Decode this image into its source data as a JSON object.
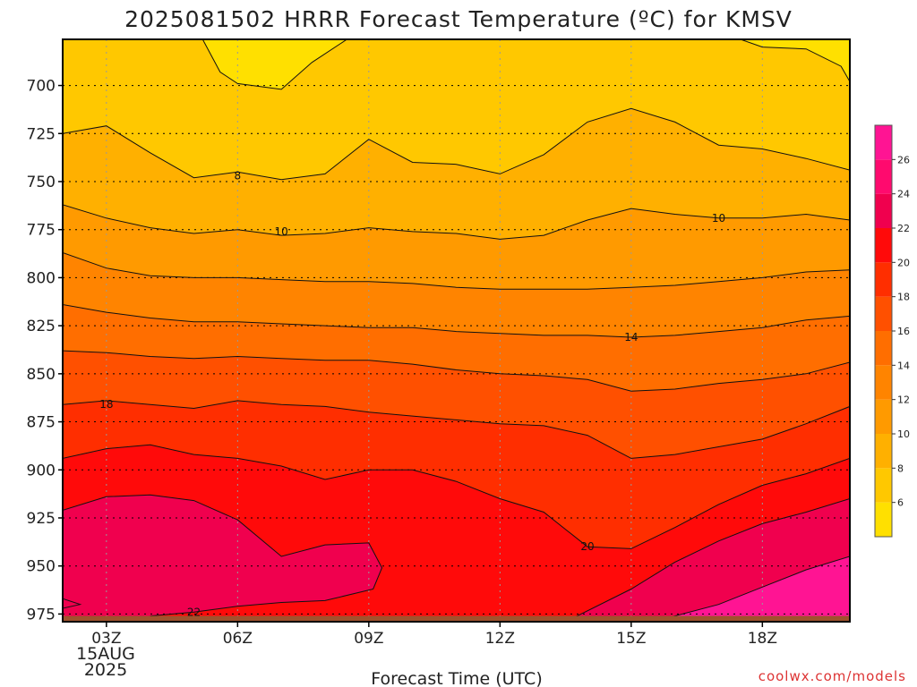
{
  "chart_data": {
    "type": "heatmap",
    "title": "2025081502 HRRR Forecast Temperature (ºC) for KMSV",
    "xlabel": "Forecast Time (UTC)",
    "x_ticks": [
      "03Z",
      "06Z",
      "09Z",
      "12Z",
      "15Z",
      "18Z"
    ],
    "x_date_line1": "15AUG",
    "x_date_line2": "2025",
    "x_range": [
      "02Z",
      "20Z"
    ],
    "y_ticks": [
      700,
      725,
      750,
      775,
      800,
      825,
      850,
      875,
      900,
      925,
      950,
      975
    ],
    "y_range": [
      676,
      979
    ],
    "y_reversed": true,
    "grid": true,
    "colorbar_ticks": [
      6,
      8,
      10,
      12,
      14,
      16,
      18,
      20,
      22,
      24,
      26
    ],
    "colorbar_range": [
      4,
      28
    ],
    "contour_labels": [
      "8",
      "10",
      "10",
      "14",
      "18",
      "20",
      "22"
    ],
    "band_colors": [
      "#ffe000",
      "#ffc800",
      "#ffb000",
      "#ff9a00",
      "#ff8400",
      "#ff6e00",
      "#ff5000",
      "#ff2e00",
      "#ff0a0a",
      "#f0004e",
      "#ff0a6e",
      "#ff1493"
    ],
    "contours": [
      {
        "level": 8,
        "points": [
          [
            2,
            725
          ],
          [
            3,
            721
          ],
          [
            4,
            735
          ],
          [
            5,
            748
          ],
          [
            6,
            745
          ],
          [
            7,
            749
          ],
          [
            8,
            746
          ],
          [
            9,
            728
          ],
          [
            10,
            740
          ],
          [
            11,
            741
          ],
          [
            12,
            746
          ],
          [
            13,
            736
          ],
          [
            14,
            719
          ],
          [
            15,
            712
          ],
          [
            16,
            719
          ],
          [
            17,
            731
          ],
          [
            18,
            733
          ],
          [
            19,
            738
          ],
          [
            20,
            744
          ]
        ]
      },
      {
        "level": 10,
        "points": [
          [
            2,
            762
          ],
          [
            3,
            769
          ],
          [
            4,
            774
          ],
          [
            5,
            777
          ],
          [
            6,
            775
          ],
          [
            7,
            778
          ],
          [
            8,
            777
          ],
          [
            9,
            774
          ],
          [
            10,
            776
          ],
          [
            11,
            777
          ],
          [
            12,
            780
          ],
          [
            13,
            778
          ],
          [
            14,
            770
          ],
          [
            15,
            764
          ],
          [
            16,
            767
          ],
          [
            17,
            769
          ],
          [
            18,
            769
          ],
          [
            19,
            767
          ],
          [
            20,
            770
          ]
        ]
      },
      {
        "level": 12,
        "points": [
          [
            2,
            787
          ],
          [
            3,
            795
          ],
          [
            4,
            799
          ],
          [
            5,
            800
          ],
          [
            6,
            800
          ],
          [
            7,
            801
          ],
          [
            8,
            802
          ],
          [
            9,
            802
          ],
          [
            10,
            803
          ],
          [
            11,
            805
          ],
          [
            12,
            806
          ],
          [
            13,
            806
          ],
          [
            14,
            806
          ],
          [
            15,
            805
          ],
          [
            16,
            804
          ],
          [
            17,
            802
          ],
          [
            18,
            800
          ],
          [
            19,
            797
          ],
          [
            20,
            796
          ]
        ]
      },
      {
        "level": 14,
        "points": [
          [
            2,
            814
          ],
          [
            3,
            818
          ],
          [
            4,
            821
          ],
          [
            5,
            823
          ],
          [
            6,
            823
          ],
          [
            7,
            824
          ],
          [
            8,
            825
          ],
          [
            9,
            826
          ],
          [
            10,
            826
          ],
          [
            11,
            828
          ],
          [
            12,
            829
          ],
          [
            13,
            830
          ],
          [
            14,
            830
          ],
          [
            15,
            831
          ],
          [
            16,
            830
          ],
          [
            17,
            828
          ],
          [
            18,
            826
          ],
          [
            19,
            822
          ],
          [
            20,
            820
          ]
        ]
      },
      {
        "level": 16,
        "points": [
          [
            2,
            838
          ],
          [
            3,
            839
          ],
          [
            4,
            841
          ],
          [
            5,
            842
          ],
          [
            6,
            841
          ],
          [
            7,
            842
          ],
          [
            8,
            843
          ],
          [
            9,
            843
          ],
          [
            10,
            845
          ],
          [
            11,
            848
          ],
          [
            12,
            850
          ],
          [
            13,
            851
          ],
          [
            14,
            853
          ],
          [
            15,
            859
          ],
          [
            16,
            858
          ],
          [
            17,
            855
          ],
          [
            18,
            853
          ],
          [
            19,
            850
          ],
          [
            20,
            844
          ]
        ]
      },
      {
        "level": 18,
        "points": [
          [
            2,
            866
          ],
          [
            3,
            864
          ],
          [
            4,
            866
          ],
          [
            5,
            868
          ],
          [
            6,
            864
          ],
          [
            7,
            866
          ],
          [
            8,
            867
          ],
          [
            9,
            870
          ],
          [
            10,
            872
          ],
          [
            11,
            874
          ],
          [
            12,
            876
          ],
          [
            13,
            877
          ],
          [
            14,
            882
          ],
          [
            15,
            894
          ],
          [
            16,
            892
          ],
          [
            17,
            888
          ],
          [
            18,
            884
          ],
          [
            19,
            876
          ],
          [
            20,
            867
          ]
        ]
      },
      {
        "level": 20,
        "points": [
          [
            2,
            894
          ],
          [
            3,
            889
          ],
          [
            4,
            887
          ],
          [
            5,
            892
          ],
          [
            6,
            894
          ],
          [
            7,
            898
          ],
          [
            8,
            905
          ],
          [
            9,
            900
          ],
          [
            10,
            900
          ],
          [
            11,
            906
          ],
          [
            12,
            915
          ],
          [
            13,
            922
          ],
          [
            14,
            940
          ],
          [
            15,
            941
          ],
          [
            16,
            930
          ],
          [
            17,
            918
          ],
          [
            18,
            908
          ],
          [
            19,
            902
          ],
          [
            20,
            894
          ]
        ]
      },
      {
        "level": 22,
        "points": [
          [
            2,
            921
          ],
          [
            3,
            914
          ],
          [
            4,
            913
          ],
          [
            5,
            916
          ],
          [
            6,
            926
          ],
          [
            7,
            945
          ],
          [
            8,
            939
          ],
          [
            9,
            938
          ],
          [
            9.3,
            951
          ],
          [
            9.1,
            962
          ],
          [
            8,
            968
          ],
          [
            7,
            969
          ],
          [
            6,
            971
          ],
          [
            5,
            974
          ],
          [
            4,
            976
          ]
        ]
      },
      {
        "level": 22,
        "points": [
          [
            13.5,
            979
          ],
          [
            15,
            962
          ],
          [
            16,
            948
          ],
          [
            17,
            937
          ],
          [
            18,
            928
          ],
          [
            19,
            922
          ],
          [
            20,
            915
          ]
        ]
      },
      {
        "level": 24,
        "points": [
          [
            15.5,
            979
          ],
          [
            17,
            970
          ],
          [
            18,
            961
          ],
          [
            19,
            952
          ],
          [
            20,
            945
          ]
        ]
      },
      {
        "level": 24,
        "points": [
          [
            2,
            967
          ],
          [
            2.4,
            970
          ],
          [
            2,
            972
          ]
        ]
      }
    ],
    "ground_level": 976
  },
  "watermark": "coolwx.com/models"
}
